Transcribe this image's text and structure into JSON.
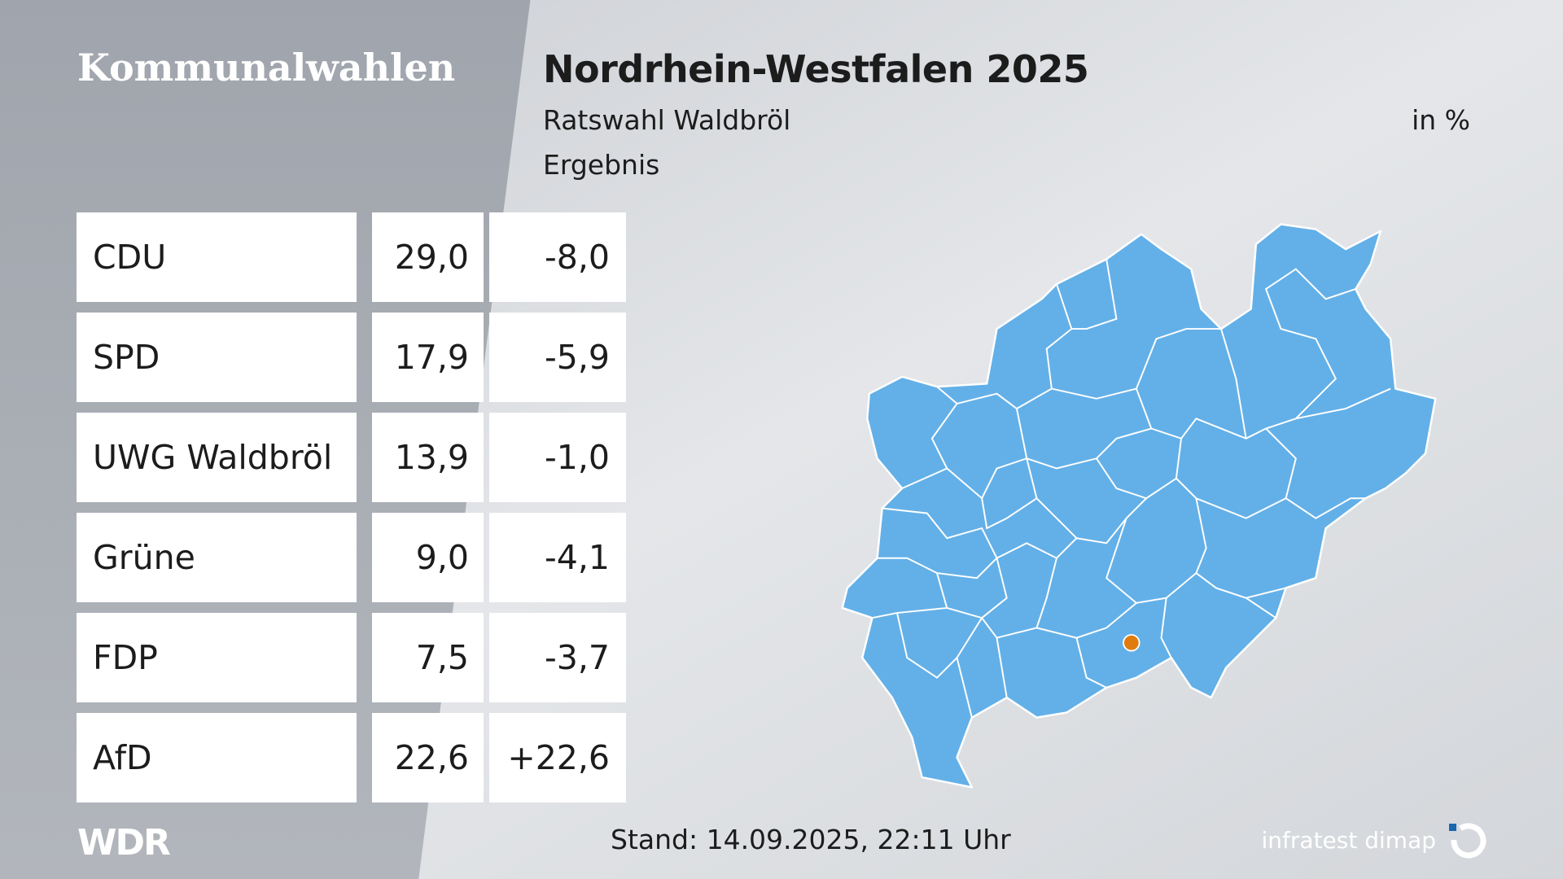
{
  "header": {
    "section": "Kommunalwahlen",
    "title": "Nordrhein-Westfalen 2025",
    "subtitle": "Ratswahl Waldbröl",
    "unit": "in %",
    "label": "Ergebnis"
  },
  "table": {
    "rows": [
      [
        "CDU",
        "29,0",
        "-8,0"
      ],
      [
        "SPD",
        "17,9",
        "-5,9"
      ],
      [
        "UWG Waldbröl",
        "13,9",
        "-1,0"
      ],
      [
        "Grüne",
        "9,0",
        "-4,1"
      ],
      [
        "FDP",
        "7,5",
        "-3,7"
      ],
      [
        "AfD",
        "22,6",
        "+22,6"
      ]
    ]
  },
  "footer": {
    "broadcaster": "WDR",
    "timestamp": "Stand: 14.09.2025, 22:11 Uhr",
    "source": "infratest dimap"
  }
}
